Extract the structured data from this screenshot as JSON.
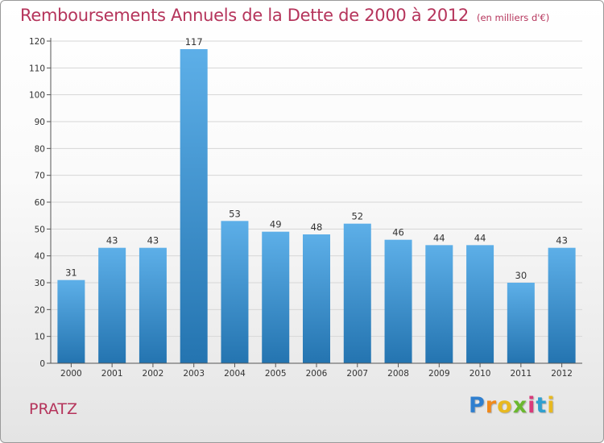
{
  "title": "Remboursements Annuels de la Dette de 2000 à 2012",
  "subtitle": "(en milliers d'€)",
  "commune": "PRATZ",
  "logo": {
    "letters": [
      "P",
      "r",
      "o",
      "x",
      "i",
      "t",
      "i"
    ],
    "colors": [
      "#2f7fcf",
      "#f08a1c",
      "#e8b920",
      "#6bb82f",
      "#d93a7a",
      "#2f9fcf",
      "#e8b920"
    ]
  },
  "colors": {
    "title": "#b5345b",
    "bar_light": "#5dafe8",
    "bar_dark": "#2474b0",
    "axis": "#555555",
    "grid": "#d6d6d6"
  },
  "chart_data": {
    "type": "bar",
    "title": "Remboursements Annuels de la Dette de 2000 à 2012",
    "subtitle": "(en milliers d'€)",
    "categories": [
      "2000",
      "2001",
      "2002",
      "2003",
      "2004",
      "2005",
      "2006",
      "2007",
      "2008",
      "2009",
      "2010",
      "2011",
      "2012"
    ],
    "values": [
      31,
      43,
      43,
      117,
      53,
      49,
      48,
      52,
      46,
      44,
      44,
      30,
      43
    ],
    "ylim": [
      0,
      120
    ],
    "yticks": [
      0,
      10,
      20,
      30,
      40,
      50,
      60,
      70,
      80,
      90,
      100,
      110,
      120
    ],
    "grid": true,
    "data_labels": true
  }
}
